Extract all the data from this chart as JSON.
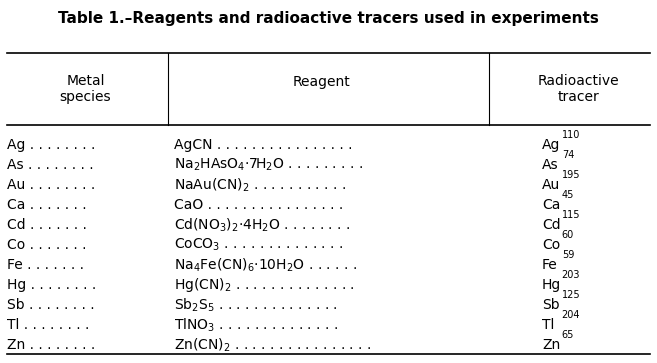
{
  "title": "Table 1.–Reagents and radioactive tracers used in experiments",
  "metals": [
    "Ag",
    "As",
    "Au",
    "Ca",
    "Cd",
    "Co",
    "Fe",
    "Hg",
    "Sb",
    "Tl",
    "Zn"
  ],
  "metal_dots": [
    " . . . . . . . .",
    " . . . . . . . .",
    " . . . . . . . .",
    " . . . . . . .",
    " . . . . . . .",
    " . . . . . . .",
    " . . . . . . .",
    " . . . . . . . .",
    " . . . . . . . .",
    " . . . . . . . .",
    " . . . . . . . ."
  ],
  "reagents": [
    "AgCN",
    "Na$_2$HAsO$_4$$\\cdot$7H$_2$O",
    "NaAu(CN)$_2$",
    "CaO",
    "Cd(NO$_3$)$_2$$\\cdot$4H$_2$O",
    "CoCO$_3$",
    "Na$_4$Fe(CN)$_6$$\\cdot$10H$_2$O",
    "Hg(CN)$_2$",
    "Sb$_2$S$_5$",
    "TlNO$_3$",
    "Zn(CN)$_2$"
  ],
  "reagent_dots": [
    " . . . . . . . . . . . . . . . .",
    " . . . . . . . . .",
    " . . . . . . . . . . .",
    " . . . . . . . . . . . . . . . .",
    " . . . . . . . .",
    " . . . . . . . . . . . . . .",
    " . . . . . .",
    " . . . . . . . . . . . . . .",
    " . . . . . . . . . . . . . .",
    " . . . . . . . . . . . . . .",
    " . . . . . . . . . . . . . . . ."
  ],
  "tracer_bases": [
    "Ag",
    "As",
    "Au",
    "Ca",
    "Cd",
    "Co",
    "Fe",
    "Hg",
    "Sb",
    "Tl",
    "Zn"
  ],
  "tracer_sups": [
    "110",
    "74",
    "195",
    "45",
    "115",
    "60",
    "59",
    "203",
    "125",
    "204",
    "65"
  ],
  "background": "#ffffff",
  "text_color": "#000000",
  "title_fontsize": 11,
  "header_fontsize": 10,
  "body_fontsize": 10,
  "super_fontsize": 7
}
